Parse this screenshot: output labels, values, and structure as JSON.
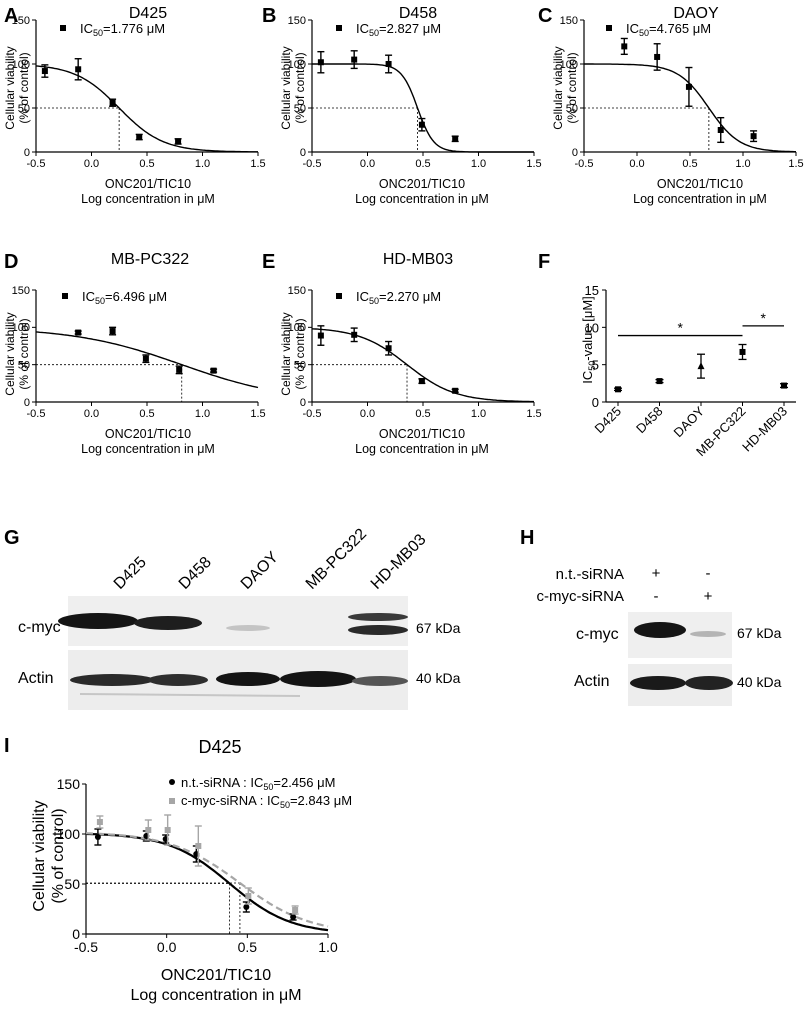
{
  "panels": {
    "A": {
      "letter": "A",
      "title": "D425",
      "legend": "IC",
      "legend_sub": "50",
      "legend_val": "=1.776 μM",
      "ylabel1": "Cellular viability",
      "ylabel2": "(% of control)",
      "xlabel1": "ONC201/TIC10",
      "xlabel2": "Log concentration in μM"
    },
    "B": {
      "letter": "B",
      "title": "D458",
      "legend": "IC",
      "legend_sub": "50",
      "legend_val": "=2.827 μM",
      "ylabel1": "Cellular viability",
      "ylabel2": "(% of control)",
      "xlabel1": "ONC201/TIC10",
      "xlabel2": "Log concentration in μM"
    },
    "C": {
      "letter": "C",
      "title": "DAOY",
      "legend": "IC",
      "legend_sub": "50",
      "legend_val": "=4.765 μM",
      "ylabel1": "Cellular viability",
      "ylabel2": "(% of control)",
      "xlabel1": "ONC201/TIC10",
      "xlabel2": "Log concentration in μM"
    },
    "D": {
      "letter": "D",
      "title": "MB-PC322",
      "legend": "IC",
      "legend_sub": "50",
      "legend_val": "=6.496 μM",
      "ylabel1": "Cellular viability",
      "ylabel2": "(% of control)",
      "xlabel1": "ONC201/TIC10",
      "xlabel2": "Log concentration in μM"
    },
    "E": {
      "letter": "E",
      "title": "HD-MB03",
      "legend": "IC",
      "legend_sub": "50",
      "legend_val": "=2.270 μM",
      "ylabel1": "Cellular viability",
      "ylabel2": "(% of control)",
      "xlabel1": "ONC201/TIC10",
      "xlabel2": "Log concentration in μM"
    },
    "F": {
      "letter": "F",
      "ylabel": "IC",
      "ylabel_sub": "50",
      "ylabel_rest": "-value [μM]",
      "sig1": "*",
      "sig2": "*"
    },
    "G": {
      "letter": "G",
      "lanes": [
        "D425",
        "D458",
        "DAOY",
        "MB-PC322",
        "HD-MB03"
      ],
      "row1_label": "c-myc",
      "row1_kda": "67 kDa",
      "row2_label": "Actin",
      "row2_kda": "40 kDa"
    },
    "H": {
      "letter": "H",
      "cond1_label": "n.t.-siRNA",
      "cond1_marks": [
        "+",
        "-"
      ],
      "cond2_label": "c-myc-siRNA",
      "cond2_marks": [
        "-",
        "+"
      ],
      "row1_label": "c-myc",
      "row1_kda": "67 kDa",
      "row2_label": "Actin",
      "row2_kda": "40 kDa"
    },
    "I": {
      "letter": "I",
      "title": "D425",
      "leg1_label": "n.t.-siRNA : IC",
      "leg1_sub": "50",
      "leg1_val": "=2.456 μM",
      "leg2_label": "c-myc-siRNA : IC",
      "leg2_sub": "50",
      "leg2_val": "=2.843 μM",
      "ylabel1": "Cellular viability",
      "ylabel2": "(% of control)",
      "xlabel1": "ONC201/TIC10",
      "xlabel2": "Log concentration in μM"
    }
  },
  "colors": {
    "black": "#000000",
    "grey": "#a6a6a6"
  },
  "chart_data": [
    {
      "panel": "A",
      "type": "scatter",
      "title": "D425",
      "xlabel": "ONC201/TIC10 Log concentration in μM",
      "ylabel": "Cellular viability (% of control)",
      "xlim": [
        -0.5,
        1.5
      ],
      "ylim": [
        0,
        150
      ],
      "xticks": [
        -0.5,
        0.0,
        0.5,
        1.0,
        1.5
      ],
      "yticks": [
        0,
        50,
        100,
        150
      ],
      "x": [
        -0.42,
        -0.12,
        0.19,
        0.43,
        0.78
      ],
      "y": [
        92,
        94,
        56,
        17,
        12
      ],
      "err": [
        7,
        12,
        4,
        3,
        3
      ],
      "logIC50": 0.249,
      "curve_top": 100,
      "curve_bottom": 0,
      "hill": 2.2
    },
    {
      "panel": "B",
      "type": "scatter",
      "title": "D458",
      "xlabel": "ONC201/TIC10 Log concentration in μM",
      "ylabel": "Cellular viability (% of control)",
      "xlim": [
        -0.5,
        1.5
      ],
      "ylim": [
        0,
        150
      ],
      "xticks": [
        -0.5,
        0.0,
        0.5,
        1.0,
        1.5
      ],
      "yticks": [
        0,
        50,
        100,
        150
      ],
      "x": [
        -0.42,
        -0.12,
        0.19,
        0.49,
        0.79
      ],
      "y": [
        102,
        105,
        100,
        31,
        15
      ],
      "err": [
        12,
        10,
        10,
        7,
        3
      ],
      "logIC50": 0.451,
      "curve_top": 100,
      "curve_bottom": 0,
      "hill": 6.0
    },
    {
      "panel": "C",
      "type": "scatter",
      "title": "DAOY",
      "xlabel": "ONC201/TIC10 Log concentration in μM",
      "ylabel": "Cellular viability (% of control)",
      "xlim": [
        -0.5,
        1.5
      ],
      "ylim": [
        0,
        150
      ],
      "xticks": [
        -0.5,
        0.0,
        0.5,
        1.0,
        1.5
      ],
      "yticks": [
        0,
        50,
        100,
        150
      ],
      "x": [
        -0.12,
        0.19,
        0.49,
        0.79,
        1.1
      ],
      "y": [
        120,
        108,
        74,
        25,
        18
      ],
      "err": [
        9,
        15,
        22,
        14,
        6
      ],
      "logIC50": 0.678,
      "curve_top": 100,
      "curve_bottom": 0,
      "hill": 3.0
    },
    {
      "panel": "D",
      "type": "scatter",
      "title": "MB-PC322",
      "xlabel": "ONC201/TIC10 Log concentration in μM",
      "ylabel": "Cellular viability (% of control)",
      "xlim": [
        -0.5,
        1.5
      ],
      "ylim": [
        0,
        150
      ],
      "xticks": [
        -0.5,
        0.0,
        0.5,
        1.0,
        1.5
      ],
      "yticks": [
        0,
        50,
        100,
        150
      ],
      "x": [
        -0.12,
        0.19,
        0.49,
        0.79,
        1.1
      ],
      "y": [
        93,
        95,
        58,
        43,
        42
      ],
      "err": [
        2,
        5,
        5,
        5,
        2
      ],
      "logIC50": 0.813,
      "curve_top": 100,
      "curve_bottom": 0,
      "hill": 0.9
    },
    {
      "panel": "E",
      "type": "scatter",
      "title": "HD-MB03",
      "xlabel": "ONC201/TIC10 Log concentration in μM",
      "ylabel": "Cellular viability (% of control)",
      "xlim": [
        -0.5,
        1.5
      ],
      "ylim": [
        0,
        150
      ],
      "xticks": [
        -0.5,
        0.0,
        0.5,
        1.0,
        1.5
      ],
      "yticks": [
        0,
        50,
        100,
        150
      ],
      "x": [
        -0.42,
        -0.12,
        0.19,
        0.49,
        0.79
      ],
      "y": [
        89,
        90,
        72,
        28,
        15
      ],
      "err": [
        13,
        9,
        9,
        3,
        2
      ],
      "logIC50": 0.356,
      "curve_top": 100,
      "curve_bottom": 0,
      "hill": 2.0
    },
    {
      "panel": "F",
      "type": "scatter",
      "ylabel": "IC50-value [μM]",
      "categories": [
        "D425",
        "D458",
        "DAOY",
        "MB-PC322",
        "HD-MB03"
      ],
      "values": [
        1.7,
        2.8,
        4.8,
        6.7,
        2.2
      ],
      "err": [
        0.15,
        0.2,
        1.6,
        1.0,
        0.25
      ],
      "markers": [
        "square",
        "square",
        "triangle",
        "square",
        "square"
      ],
      "ylim": [
        0,
        15
      ],
      "yticks": [
        0,
        5,
        10,
        15
      ],
      "significance": [
        {
          "from": "D425",
          "to": "MB-PC322",
          "label": "*",
          "y": 8.9
        },
        {
          "from": "MB-PC322",
          "to": "HD-MB03",
          "label": "*",
          "y": 10.2
        }
      ]
    },
    {
      "panel": "I",
      "type": "scatter",
      "title": "D425",
      "xlabel": "ONC201/TIC10 Log concentration in μM",
      "ylabel": "Cellular viability (% of control)",
      "xlim": [
        -0.5,
        1.0
      ],
      "ylim": [
        0,
        150
      ],
      "xticks": [
        -0.5,
        0.0,
        0.5,
        1.0
      ],
      "yticks": [
        0,
        50,
        100,
        150
      ],
      "series": [
        {
          "name": "n.t.-siRNA",
          "color": "#000000",
          "marker": "circle",
          "line": "solid",
          "x": [
            -0.42,
            -0.12,
            0.0,
            0.19,
            0.5,
            0.79
          ],
          "y": [
            97,
            98,
            95,
            80,
            27,
            17
          ],
          "err": [
            8,
            5,
            4,
            8,
            5,
            3
          ],
          "logIC50": 0.39,
          "curve_top": 101,
          "curve_bottom": 0,
          "hill": 2.3
        },
        {
          "name": "c-myc-siRNA",
          "color": "#a6a6a6",
          "marker": "square",
          "line": "dashed",
          "x": [
            -0.42,
            -0.12,
            0.0,
            0.19,
            0.5,
            0.79
          ],
          "y": [
            112,
            104,
            104,
            88,
            38,
            24
          ],
          "err": [
            6,
            10,
            15,
            20,
            8,
            4
          ],
          "logIC50": 0.454,
          "curve_top": 102,
          "curve_bottom": 0,
          "hill": 2.0
        }
      ]
    }
  ]
}
